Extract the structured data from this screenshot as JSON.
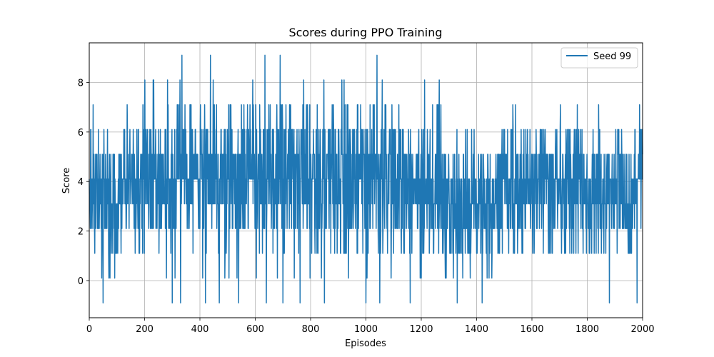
{
  "chart_data": {
    "type": "line",
    "title": "Scores during PPO Training",
    "xlabel": "Episodes",
    "ylabel": "Score",
    "xlim": [
      0,
      2000
    ],
    "ylim": [
      -1.5,
      9.6
    ],
    "xticks": [
      0,
      200,
      400,
      600,
      800,
      1000,
      1200,
      1400,
      1600,
      1800,
      2000
    ],
    "yticks": [
      0,
      2,
      4,
      6,
      8
    ],
    "grid": true,
    "legend_position": "top-right",
    "line_color": "#1f77b4",
    "series": [
      {
        "name": "Seed 99",
        "sample_x": [
          0,
          335,
          420,
          635,
          690,
          762,
          1000,
          1265,
          1980,
          2000
        ],
        "sample_y": [
          4.1,
          9.1,
          -0.9,
          9.1,
          9.1,
          -0.9,
          -0.9,
          8.1,
          -0.9,
          5.1
        ]
      }
    ]
  }
}
